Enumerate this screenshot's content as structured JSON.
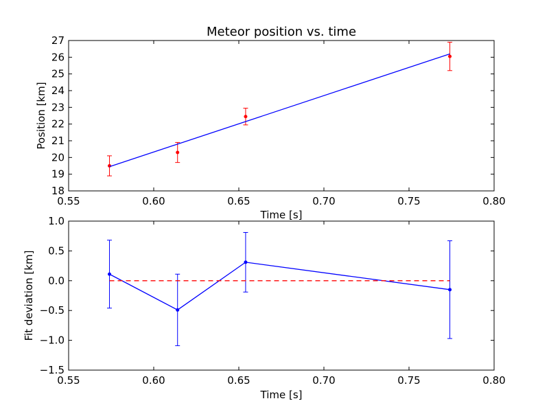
{
  "colors": {
    "data_points": "#ff0000",
    "fit_line": "#0000ff",
    "residuals": "#0000ff",
    "zero_line": "#ff0000"
  },
  "chart_data": [
    {
      "type": "scatter",
      "title": "Meteor position vs. time",
      "xlabel": "Time [s]",
      "ylabel": "Position [km]",
      "xlim": [
        0.55,
        0.8
      ],
      "ylim": [
        18,
        27
      ],
      "xticks": [
        "0.55",
        "0.60",
        "0.65",
        "0.70",
        "0.75",
        "0.80"
      ],
      "yticks": [
        "18",
        "19",
        "20",
        "21",
        "22",
        "23",
        "24",
        "25",
        "26",
        "27"
      ],
      "grid": false,
      "series": [
        {
          "kind": "errorbar",
          "color": "red",
          "x": [
            0.574,
            0.614,
            0.654,
            0.774
          ],
          "y": [
            19.5,
            20.3,
            22.45,
            26.05
          ],
          "yerr": [
            0.6,
            0.6,
            0.5,
            0.85
          ]
        },
        {
          "kind": "line",
          "color": "blue",
          "x": [
            0.574,
            0.774
          ],
          "y": [
            19.45,
            26.2
          ]
        }
      ]
    },
    {
      "type": "line",
      "title": "",
      "xlabel": "Time [s]",
      "ylabel": "Fit deviation [km]",
      "xlim": [
        0.55,
        0.8
      ],
      "ylim": [
        -1.5,
        1.0
      ],
      "xticks": [
        "0.55",
        "0.60",
        "0.65",
        "0.70",
        "0.75",
        "0.80"
      ],
      "yticks": [
        "−1.5",
        "−1.0",
        "−0.5",
        "0.0",
        "0.5",
        "1.0"
      ],
      "grid": false,
      "series": [
        {
          "kind": "errorbar-line",
          "color": "blue",
          "x": [
            0.574,
            0.614,
            0.654,
            0.774
          ],
          "y": [
            0.11,
            -0.49,
            0.31,
            -0.15
          ],
          "yerr": [
            0.57,
            0.6,
            0.5,
            0.82
          ]
        },
        {
          "kind": "dashed-reference",
          "color": "red",
          "x": [
            0.574,
            0.774
          ],
          "y": [
            0.0,
            0.0
          ]
        }
      ]
    }
  ]
}
